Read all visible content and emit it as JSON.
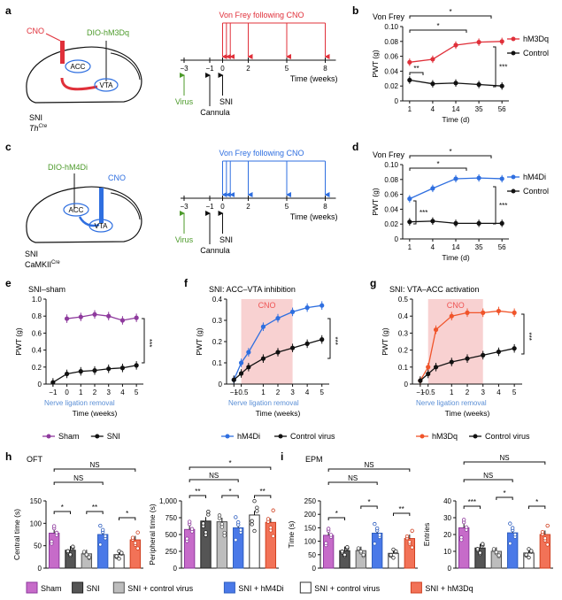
{
  "colors": {
    "red": "#e0303a",
    "blue": "#2f6fe0",
    "purple": "#8e3a9d",
    "black": "#111111",
    "green": "#4c9a2a",
    "orange": "#f0542a",
    "pink": "#f6c2c2",
    "sham": "#c66bc9",
    "sni": "#555555",
    "ctrl": "#bdbdbd",
    "hm4di": "#4a79e8",
    "ctrl2": "#ffffff",
    "hm3dq": "#f27257"
  },
  "panels": {
    "a": "a",
    "b": "b",
    "c": "c",
    "d": "d",
    "e": "e",
    "f": "f",
    "g": "g",
    "h": "h",
    "i": "i"
  },
  "diagram_a": {
    "cno": "CNO",
    "virus_name": "DIO-hM3Dq",
    "acc": "ACC",
    "vta": "VTA",
    "sni": "SNI",
    "mouse": "Th",
    "mouse_sup": "Cre",
    "title": "Von Frey following CNO",
    "ticks": [
      "−3",
      "−1",
      "0",
      "2",
      "5",
      "8"
    ],
    "xlabel": "Time (weeks)",
    "virus": "Virus",
    "cannula": "Cannula",
    "sni_label": "SNI"
  },
  "diagram_c": {
    "cno": "CNO",
    "virus_name": "DIO-hM4Di",
    "acc": "ACC",
    "vta": "VTA",
    "sni": "SNI",
    "mouse": "CaMKII",
    "mouse_sup": "Cre",
    "title": "Von Frey following CNO",
    "ticks": [
      "−3",
      "−1",
      "0",
      "2",
      "5",
      "8"
    ],
    "xlabel": "Time (weeks)",
    "virus": "Virus",
    "cannula": "Cannula",
    "sni_label": "SNI"
  },
  "chart_data": [
    {
      "id": "b",
      "type": "line",
      "title": "Von Frey",
      "xlabel": "Time (d)",
      "ylabel": "PWT (g)",
      "categories": [
        "1",
        "4",
        "14",
        "35",
        "56"
      ],
      "ylim": [
        0,
        0.1
      ],
      "yticks": [
        "0",
        "0.02",
        "0.04",
        "0.06",
        "0.08",
        "0.10"
      ],
      "series": [
        {
          "name": "hM3Dq",
          "values": [
            0.052,
            0.056,
            0.075,
            0.079,
            0.08
          ]
        },
        {
          "name": "Control",
          "values": [
            0.028,
            0.023,
            0.024,
            0.022,
            0.02
          ]
        }
      ],
      "annotations": [
        "*",
        "*",
        "**",
        "***"
      ]
    },
    {
      "id": "d",
      "type": "line",
      "title": "Von Frey",
      "xlabel": "Time (d)",
      "ylabel": "PWT (g)",
      "categories": [
        "1",
        "4",
        "14",
        "35",
        "56"
      ],
      "ylim": [
        0,
        0.1
      ],
      "yticks": [
        "0",
        "0.02",
        "0.04",
        "0.06",
        "0.08",
        "0.10"
      ],
      "series": [
        {
          "name": "hM4Di",
          "values": [
            0.054,
            0.068,
            0.081,
            0.082,
            0.081
          ]
        },
        {
          "name": "Control",
          "values": [
            0.023,
            0.024,
            0.021,
            0.021,
            0.021
          ]
        }
      ],
      "annotations": [
        "*",
        "*",
        "***",
        "***"
      ]
    },
    {
      "id": "e",
      "type": "line",
      "title": "SNI–sham",
      "xlabel": "Time (weeks)",
      "ylabel": "PWT (g)",
      "categories": [
        "−1",
        "0",
        "1",
        "2",
        "3",
        "4",
        "5"
      ],
      "ylim": [
        0,
        1.0
      ],
      "yticks": [
        "0",
        "0.2",
        "0.4",
        "0.6",
        "0.8",
        "1.0"
      ],
      "series": [
        {
          "name": "Sham",
          "x": [
            0,
            1,
            2,
            3,
            4,
            5
          ],
          "values": [
            0.77,
            0.79,
            0.82,
            0.8,
            0.75,
            0.78
          ]
        },
        {
          "name": "SNI",
          "x": [
            -1,
            0,
            1,
            2,
            3,
            4,
            5
          ],
          "values": [
            0.02,
            0.12,
            0.15,
            0.16,
            0.18,
            0.19,
            0.22
          ]
        }
      ],
      "annotations": [
        "***"
      ],
      "xnote": "Nerve ligation removal"
    },
    {
      "id": "f",
      "type": "line",
      "title": "SNI: ACC–VTA inhibition",
      "xlabel": "Time (weeks)",
      "ylabel": "PWT (g)",
      "categories": [
        "−1",
        "−0.5",
        "1",
        "2",
        "3",
        "4",
        "5"
      ],
      "ylim": [
        0,
        0.4
      ],
      "yticks": [
        "0",
        "0.1",
        "0.2",
        "0.3",
        "0.4"
      ],
      "series": [
        {
          "name": "hM4Di",
          "x": [
            -1,
            -0.5,
            0,
            1,
            2,
            3,
            4,
            5
          ],
          "values": [
            0.02,
            0.1,
            0.15,
            0.27,
            0.31,
            0.34,
            0.36,
            0.37
          ]
        },
        {
          "name": "Control virus",
          "x": [
            -1,
            -0.5,
            0,
            1,
            2,
            3,
            4,
            5
          ],
          "values": [
            0.02,
            0.05,
            0.08,
            0.12,
            0.15,
            0.17,
            0.19,
            0.21
          ]
        }
      ],
      "annotations": [
        "***"
      ],
      "band": "CNO",
      "xnote": "Nerve ligation removal"
    },
    {
      "id": "g",
      "type": "line",
      "title": "SNI: VTA–ACC activation",
      "xlabel": "Time (weeks)",
      "ylabel": "PWT (g)",
      "categories": [
        "−1",
        "−0.5",
        "1",
        "2",
        "3",
        "4",
        "5"
      ],
      "ylim": [
        0,
        0.5
      ],
      "yticks": [
        "0",
        "0.1",
        "0.2",
        "0.3",
        "0.4",
        "0.5"
      ],
      "series": [
        {
          "name": "hM3Dq",
          "x": [
            -1,
            -0.5,
            0,
            1,
            2,
            3,
            4,
            5
          ],
          "values": [
            0.02,
            0.1,
            0.32,
            0.4,
            0.42,
            0.42,
            0.43,
            0.42
          ]
        },
        {
          "name": "Control virus",
          "x": [
            -1,
            -0.5,
            0,
            1,
            2,
            3,
            4,
            5
          ],
          "values": [
            0.02,
            0.06,
            0.1,
            0.13,
            0.15,
            0.17,
            0.19,
            0.21
          ]
        }
      ],
      "annotations": [
        "***"
      ],
      "band": "CNO",
      "xnote": "Nerve ligation removal"
    },
    {
      "id": "h1",
      "type": "bar",
      "group": "OFT",
      "ylabel": "Central time (s)",
      "ylim": [
        0,
        150
      ],
      "yticks": [
        "0",
        "50",
        "100",
        "150"
      ],
      "categories": [
        "Sham",
        "SNI",
        "SNI + control virus",
        "SNI + hM4Di",
        "SNI + control virus",
        "SNI + hM3Dq"
      ],
      "values": [
        78,
        40,
        32,
        75,
        30,
        63
      ],
      "annotations": [
        "*",
        "**",
        "*",
        "NS",
        "NS"
      ]
    },
    {
      "id": "h2",
      "type": "bar",
      "group": "OFT",
      "ylabel": "Peripheral time (s)",
      "ylim": [
        0,
        1000
      ],
      "yticks": [
        "0",
        "250",
        "500",
        "750",
        "1,000"
      ],
      "categories": [
        "Sham",
        "SNI",
        "SNI + control virus",
        "SNI + hM4Di",
        "SNI + control virus",
        "SNI + hM3Dq"
      ],
      "values": [
        575,
        700,
        690,
        600,
        790,
        680
      ],
      "annotations": [
        "**",
        "*",
        "**",
        "NS",
        "*"
      ]
    },
    {
      "id": "i1",
      "type": "bar",
      "group": "EPM",
      "ylabel": "Time (s)",
      "ylim": [
        0,
        250
      ],
      "yticks": [
        "0",
        "50",
        "100",
        "150",
        "200",
        "250"
      ],
      "categories": [
        "Sham",
        "SNI",
        "SNI + control virus",
        "SNI + hM4Di",
        "SNI + control virus",
        "SNI + hM3Dq"
      ],
      "values": [
        122,
        65,
        65,
        130,
        55,
        110
      ],
      "annotations": [
        "*",
        "*",
        "**",
        "NS",
        "NS"
      ]
    },
    {
      "id": "i2",
      "type": "bar",
      "group": "EPM",
      "ylabel": "Entries",
      "ylim": [
        0,
        40
      ],
      "yticks": [
        "0",
        "10",
        "20",
        "30",
        "40"
      ],
      "categories": [
        "Sham",
        "SNI",
        "SNI + control virus",
        "SNI + hM4Di",
        "SNI + control virus",
        "SNI + hM3Dq"
      ],
      "values": [
        24,
        12,
        10,
        21,
        9,
        20
      ],
      "annotations": [
        "***",
        "*",
        "*",
        "NS",
        "NS"
      ]
    }
  ],
  "legends": {
    "e": [
      "Sham",
      "SNI"
    ],
    "f": [
      "hM4Di",
      "Control virus"
    ],
    "g": [
      "hM3Dq",
      "Control virus"
    ],
    "bottom": [
      "Sham",
      "SNI",
      "SNI + control virus",
      "SNI + hM4Di",
      "SNI + control virus",
      "SNI + hM3Dq"
    ]
  },
  "group_labels": {
    "h": "OFT",
    "i": "EPM"
  }
}
